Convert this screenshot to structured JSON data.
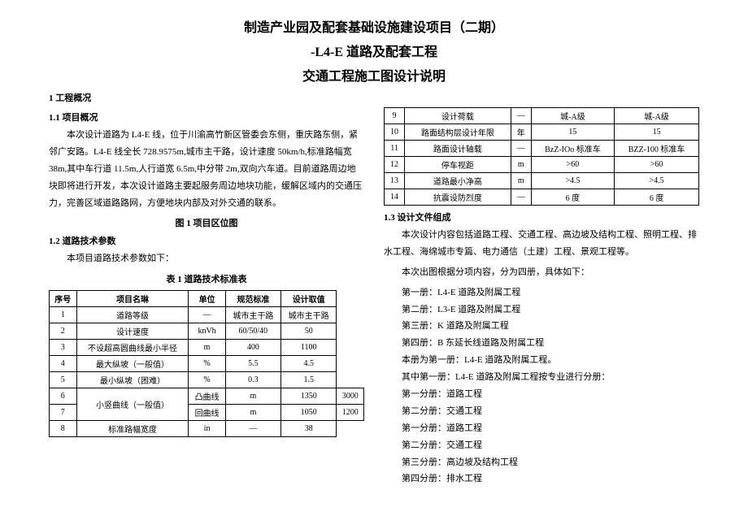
{
  "title1": "制造产业园及配套基础设施建设项目（二期）",
  "title2": "-L4-E 道路及配套工程",
  "title3": "交通工程施工图设计说明",
  "sec1": "1 工程概况",
  "sec11": "1.1  项目概况",
  "para1": "本次设计道路为 L4-E 线，位于川渝高竹新区管委会东侧，重庆路东侧，紧邻广安路。L4-E 线全长 728.9575m,城市主干路，设计速度 50km/h,标准路幅宽 38m,其中车行道 11.5m,人行道宽 6.5m,中分带 2m,双向六车道。目前道路周边地块即将进行开发，本次设计道路主要起服务周边地块功能，缓解区域内的交通压力，完善区域道路路网，方便地块内部及对外交通的联系。",
  "fig1cap": "图 1 项目区位图",
  "sec12": "1.2  道路技术参数",
  "para2": "本项目道路技术参数如下：",
  "tbl1cap": "表 1 道路技术标准表",
  "tbl1head": [
    "序号",
    "项目名琳",
    "单位",
    "规范标准",
    "设计取值"
  ],
  "tbl1": [
    [
      "1",
      "道路等级",
      "—",
      "城市主干路",
      "城市主干路"
    ],
    [
      "2",
      "设计速度",
      "knVh",
      "60/50/40",
      "50"
    ],
    [
      "3",
      "不设超高圆曲线最小半径",
      "m",
      "400",
      "1100"
    ],
    [
      "4",
      "最大纵坡（一般值）",
      "%",
      "5.5",
      "4.5"
    ],
    [
      "5",
      "最小纵坡（困难）",
      "%",
      "0.3",
      "1.5"
    ],
    [
      "6",
      "小竖曲线（一般值）",
      "凸曲线",
      "m",
      "1350",
      "3000"
    ],
    [
      "7",
      "",
      "回曲线",
      "m",
      "1050",
      "1200"
    ],
    [
      "8",
      "标准路幅宽度",
      "in",
      "—",
      "38"
    ]
  ],
  "tbl2": [
    [
      "9",
      "设计荷载",
      "—",
      "城-A级",
      "城-A级"
    ],
    [
      "10",
      "路面结构层设计年限",
      "年",
      "15",
      "15"
    ],
    [
      "11",
      "路面设计轴载",
      "—",
      "BzZ-IOo 标准车",
      "BZZ-100 标准车"
    ],
    [
      "12",
      "停车视距",
      "m",
      ">60",
      ">60"
    ],
    [
      "13",
      "道路最小净高",
      "m",
      ">4.5",
      ">4.5"
    ],
    [
      "14",
      "抗震设防烈度",
      "—",
      "6 度",
      "6 度"
    ]
  ],
  "sec13": "1.3  设计文件组成",
  "para3": "本次设计内容包括道路工程、交通工程、高边坡及结构工程、照明工程、排水工程、海绵城市专篇、电力通信（土建）工程、景观工程等。",
  "para4": "本次出图根据分项内容，分为四册，具体如下：",
  "list1": [
    "第一册：L4-E 道路及附属工程",
    "第二册：L3-E 道路及附属工程",
    "第三册：K 道路及附属工程",
    "第四册：B 东延长线道路及附属工程",
    "本册为第一册：L4-E 道路及附属工程。",
    "其中第一册：L4-E 道路及附属工程按专业进行分册：",
    "第一分册：道路工程",
    "第二分册：交通工程",
    "第一分册：道路工程",
    "第二分册：交通工程",
    "第三分册：高边坡及结构工程",
    "第四分册：排水工程"
  ]
}
